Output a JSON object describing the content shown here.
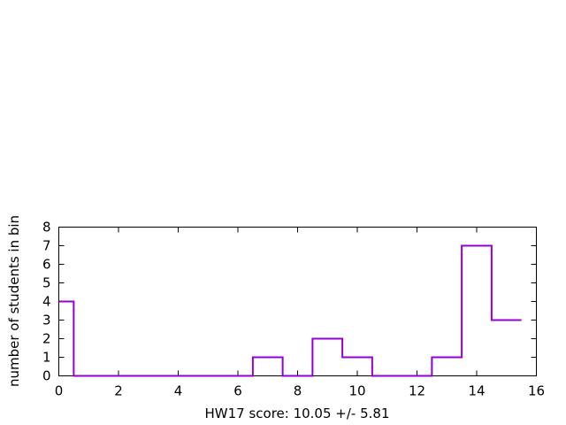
{
  "chart_data": {
    "type": "histogram",
    "title": "",
    "xlabel": "HW17 score: 10.05 +/- 5.81",
    "ylabel": "number of students in bin",
    "xlim": [
      0,
      16
    ],
    "ylim": [
      0,
      8
    ],
    "xticks": [
      0,
      2,
      4,
      6,
      8,
      10,
      12,
      14,
      16
    ],
    "yticks": [
      0,
      1,
      2,
      3,
      4,
      5,
      6,
      7,
      8
    ],
    "bin_width": 1,
    "bin_centers": [
      0,
      1,
      2,
      3,
      4,
      5,
      6,
      7,
      8,
      9,
      10,
      11,
      12,
      13,
      14,
      15
    ],
    "counts": [
      4,
      0,
      0,
      0,
      0,
      0,
      0,
      1,
      0,
      2,
      1,
      0,
      0,
      1,
      7,
      3
    ],
    "grid": false,
    "series_color": "#9400d3"
  }
}
